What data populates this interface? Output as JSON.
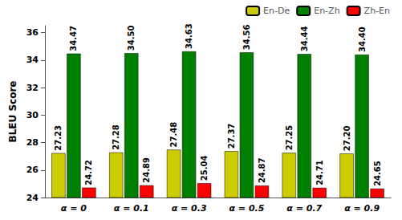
{
  "chart_data": {
    "type": "bar",
    "categories": [
      "α = 0",
      "α = 0.1",
      "α = 0.3",
      "α = 0.5",
      "α = 0.7",
      "α = 0.9"
    ],
    "series": [
      {
        "name": "En-De",
        "color": "#cccc00",
        "values": [
          27.23,
          27.28,
          27.48,
          27.37,
          27.25,
          27.2
        ],
        "value_labels": [
          "27.23",
          "27.28",
          "27.48",
          "27.37",
          "27.25",
          "27.20"
        ]
      },
      {
        "name": "En-Zh",
        "color": "#008000",
        "values": [
          34.47,
          34.5,
          34.63,
          34.56,
          34.44,
          34.4
        ],
        "value_labels": [
          "34.47",
          "34.50",
          "34.63",
          "34.56",
          "34.44",
          "34.40"
        ]
      },
      {
        "name": "Zh-En",
        "color": "#ff0000",
        "values": [
          24.72,
          24.89,
          25.04,
          24.87,
          24.71,
          24.65
        ],
        "value_labels": [
          "24.72",
          "24.89",
          "25.04",
          "24.87",
          "24.71",
          "24.65"
        ]
      }
    ],
    "ylabel": "BLEU Score",
    "ylim": [
      24,
      36.5
    ],
    "yticks": [
      24,
      26,
      28,
      30,
      32,
      34,
      36
    ],
    "legend": "upper right",
    "data_labels": true,
    "grid": false
  }
}
